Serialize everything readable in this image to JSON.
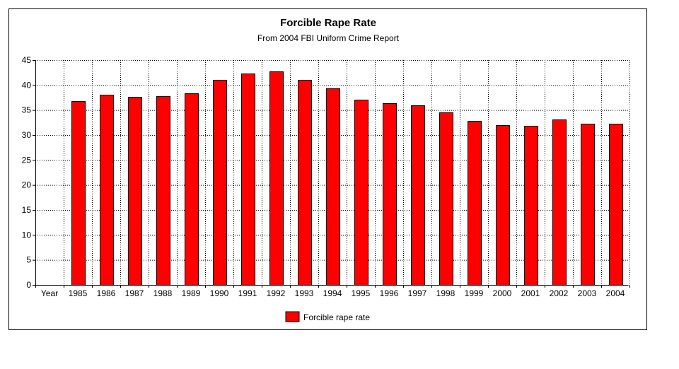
{
  "chart_data": {
    "type": "bar",
    "title": "Forcible Rape Rate",
    "subtitle": "From 2004 FBI Uniform Crime Report",
    "xlabel": "Year",
    "ylabel": "",
    "ylim": [
      0,
      45
    ],
    "yticks": [
      0,
      5,
      10,
      15,
      20,
      25,
      30,
      35,
      40,
      45
    ],
    "grid": true,
    "legend_position": "bottom",
    "categories": [
      "1985",
      "1986",
      "1987",
      "1988",
      "1989",
      "1990",
      "1991",
      "1992",
      "1993",
      "1994",
      "1995",
      "1996",
      "1997",
      "1998",
      "1999",
      "2000",
      "2001",
      "2002",
      "2003",
      "2004"
    ],
    "series": [
      {
        "name": "Forcible rape rate",
        "color": "#ff0000",
        "values": [
          36.8,
          38.1,
          37.6,
          37.8,
          38.3,
          41.1,
          42.3,
          42.8,
          41.1,
          39.3,
          37.1,
          36.3,
          35.9,
          34.5,
          32.8,
          32.0,
          31.8,
          33.1,
          32.3,
          32.2
        ]
      }
    ]
  }
}
